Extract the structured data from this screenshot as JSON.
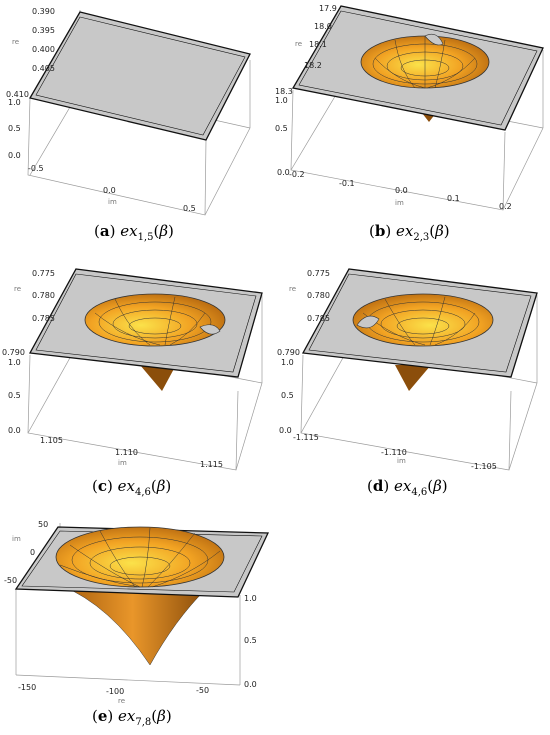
{
  "figures": [
    {
      "id": "a",
      "caption": {
        "label": "a",
        "func": "ex",
        "sub": "1,5",
        "arg": "β"
      },
      "re_ticks": [
        "0.390",
        "0.395",
        "0.400",
        "0.405",
        "0.410"
      ],
      "val_ticks": [
        "1.0",
        "0.5",
        "0.0"
      ],
      "im_ticks": [
        "-0.5",
        "0.0",
        "0.5"
      ],
      "re_label": "re",
      "im_label": "im"
    },
    {
      "id": "b",
      "caption": {
        "label": "b",
        "func": "ex",
        "sub": "2,3",
        "arg": "β"
      },
      "re_ticks": [
        "17.9",
        "18.0",
        "18.1",
        "18.2",
        "18.3"
      ],
      "val_ticks": [
        "1.0",
        "0.5",
        "0.0"
      ],
      "im_ticks": [
        "-0.2",
        "-0.1",
        "0.0",
        "0.1",
        "0.2"
      ],
      "re_label": "re",
      "im_label": "im"
    },
    {
      "id": "c",
      "caption": {
        "label": "c",
        "func": "ex",
        "sub": "4,6",
        "arg": "β"
      },
      "re_ticks": [
        "0.775",
        "0.780",
        "0.785",
        "0.790"
      ],
      "val_ticks": [
        "1.0",
        "0.5",
        "0.0"
      ],
      "im_ticks": [
        "1.105",
        "1.110",
        "1.115"
      ],
      "re_label": "re",
      "im_label": "im"
    },
    {
      "id": "d",
      "caption": {
        "label": "d",
        "func": "ex",
        "sub": "4,6",
        "arg": "β"
      },
      "re_ticks": [
        "0.775",
        "0.780",
        "0.785",
        "0.790"
      ],
      "val_ticks": [
        "1.0",
        "0.5",
        "0.0"
      ],
      "im_ticks": [
        "-1.115",
        "-1.110",
        "-1.105"
      ],
      "re_label": "re",
      "im_label": "im"
    },
    {
      "id": "e",
      "caption": {
        "label": "e",
        "func": "ex",
        "sub": "7,8",
        "arg": "β"
      },
      "im_ticks": [
        "50",
        "0",
        "-50"
      ],
      "val_ticks": [
        "1.0",
        "0.5",
        "0.0"
      ],
      "re_ticks": [
        "-150",
        "-100",
        "-50"
      ],
      "re_label": "re",
      "im_label": "im"
    }
  ],
  "colors": {
    "surface_light": "#fbe24a",
    "surface_mid": "#f2a323",
    "surface_dark": "#a45c0c",
    "plane": "#c8c8c8",
    "outline": "#111111"
  }
}
